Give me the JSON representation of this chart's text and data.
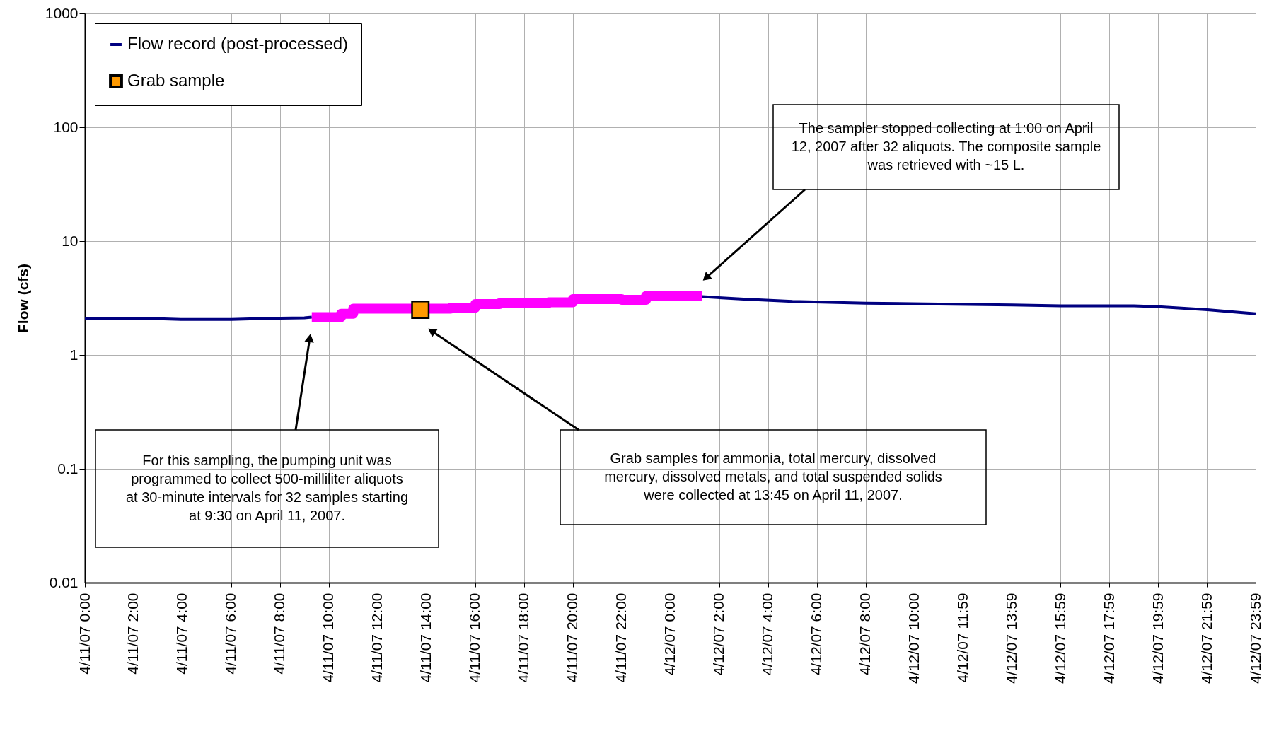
{
  "chart_data": {
    "type": "line",
    "ylabel": "Flow (cfs)",
    "log": true,
    "grid": true,
    "legend": "top left",
    "xlim": [
      "2007-04-11T00:00",
      "2007-04-12T23:59"
    ],
    "ylim": [
      0.01,
      1000
    ],
    "yticks": [
      0.01,
      0.1,
      1,
      10,
      100,
      1000
    ],
    "xticks": [
      {
        "value": "2007-04-11T00:00",
        "label": "4/11/07 0:00"
      },
      {
        "value": "2007-04-11T02:00",
        "label": "4/11/07 2:00"
      },
      {
        "value": "2007-04-11T04:00",
        "label": "4/11/07 4:00"
      },
      {
        "value": "2007-04-11T06:00",
        "label": "4/11/07 6:00"
      },
      {
        "value": "2007-04-11T08:00",
        "label": "4/11/07 8:00"
      },
      {
        "value": "2007-04-11T10:00",
        "label": "4/11/07 10:00"
      },
      {
        "value": "2007-04-11T12:00",
        "label": "4/11/07 12:00"
      },
      {
        "value": "2007-04-11T14:00",
        "label": "4/11/07 14:00"
      },
      {
        "value": "2007-04-11T16:00",
        "label": "4/11/07 16:00"
      },
      {
        "value": "2007-04-11T18:00",
        "label": "4/11/07 18:00"
      },
      {
        "value": "2007-04-11T20:00",
        "label": "4/11/07 20:00"
      },
      {
        "value": "2007-04-11T22:00",
        "label": "4/11/07 22:00"
      },
      {
        "value": "2007-04-12T00:00",
        "label": "4/12/07 0:00"
      },
      {
        "value": "2007-04-12T02:00",
        "label": "4/12/07 2:00"
      },
      {
        "value": "2007-04-12T04:00",
        "label": "4/12/07 4:00"
      },
      {
        "value": "2007-04-12T06:00",
        "label": "4/12/07 6:00"
      },
      {
        "value": "2007-04-12T08:00",
        "label": "4/12/07 8:00"
      },
      {
        "value": "2007-04-12T10:00",
        "label": "4/12/07 10:00"
      },
      {
        "value": "2007-04-12T11:59",
        "label": "4/12/07 11:59"
      },
      {
        "value": "2007-04-12T13:59",
        "label": "4/12/07 13:59"
      },
      {
        "value": "2007-04-12T15:59",
        "label": "4/12/07 15:59"
      },
      {
        "value": "2007-04-12T17:59",
        "label": "4/12/07 17:59"
      },
      {
        "value": "2007-04-12T19:59",
        "label": "4/12/07 19:59"
      },
      {
        "value": "2007-04-12T21:59",
        "label": "4/12/07 21:59"
      },
      {
        "value": "2007-04-12T23:59",
        "label": "4/12/07 23:59"
      }
    ],
    "series": [
      {
        "name": "Flow record (post-processed)",
        "color": "#000080",
        "marker": "none",
        "x": [
          "2007-04-11T00:00",
          "2007-04-11T01:00",
          "2007-04-11T02:00",
          "2007-04-11T03:00",
          "2007-04-11T04:00",
          "2007-04-11T05:00",
          "2007-04-11T06:00",
          "2007-04-11T07:00",
          "2007-04-11T08:00",
          "2007-04-11T09:00",
          "2007-04-11T09:18",
          "2007-04-11T12:00",
          "2007-04-11T16:00",
          "2007-04-11T20:00",
          "2007-04-12T00:00",
          "2007-04-12T01:18",
          "2007-04-12T03:00",
          "2007-04-12T05:00",
          "2007-04-12T08:00",
          "2007-04-12T11:00",
          "2007-04-12T14:00",
          "2007-04-12T16:00",
          "2007-04-12T19:00",
          "2007-04-12T20:00",
          "2007-04-12T22:00",
          "2007-04-12T23:59"
        ],
        "values": [
          2.1,
          2.1,
          2.1,
          2.08,
          2.05,
          2.05,
          2.05,
          2.08,
          2.1,
          2.12,
          2.15,
          null,
          null,
          null,
          null,
          3.25,
          3.1,
          2.95,
          2.85,
          2.8,
          2.75,
          2.7,
          2.7,
          2.65,
          2.5,
          2.3
        ]
      },
      {
        "type": "step",
        "color": "#ff00ff",
        "marker": "none",
        "x": [
          "2007-04-11T09:18",
          "2007-04-11T10:30",
          "2007-04-11T11:00",
          "2007-04-11T12:30",
          "2007-04-11T15:00",
          "2007-04-11T16:00",
          "2007-04-11T17:00",
          "2007-04-11T19:00",
          "2007-04-11T20:00",
          "2007-04-11T22:00",
          "2007-04-11T23:00",
          "2007-04-12T01:18"
        ],
        "values": [
          2.15,
          2.3,
          2.55,
          2.55,
          2.6,
          2.8,
          2.85,
          2.9,
          3.1,
          3.05,
          3.3,
          3.3
        ]
      },
      {
        "name": "Grab sample",
        "type": "scatter",
        "marker": "square",
        "color": "#ff9900",
        "x": [
          "2007-04-11T13:45"
        ],
        "values": [
          2.5
        ]
      }
    ],
    "annotations": [
      "For this sampling, the pumping unit was programmed to collect 500-milliliter aliquots at 30-minute intervals for 32 samples starting at 9:30 on April 11, 2007.",
      "Grab samples for ammonia, total mercury, dissolved mercury, dissolved metals, and total suspended solids were collected at 13:45 on April 11, 2007.",
      "The sampler stopped collecting at 1:00 on April 12, 2007 after 32 aliquots. The composite sample was retrieved with ~15 L."
    ]
  }
}
